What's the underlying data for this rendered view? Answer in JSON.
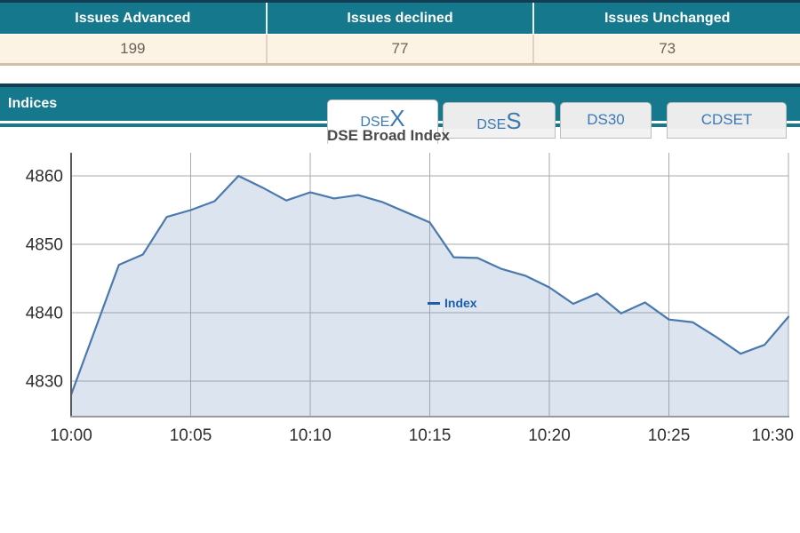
{
  "summary_table": {
    "headers": [
      "Issues Advanced",
      "Issues declined",
      "Issues Unchanged"
    ],
    "values": [
      "199",
      "77",
      "73"
    ]
  },
  "indices_panel": {
    "title": "Indices",
    "tabs": [
      {
        "prefix": "DSE",
        "suffix": "X",
        "active": true
      },
      {
        "prefix": "DSE",
        "suffix": "S",
        "active": false
      },
      {
        "label": "DS30",
        "active": false
      },
      {
        "label": "CDSET",
        "active": false
      }
    ]
  },
  "chart_data": {
    "type": "area",
    "title": "DSE Broad Index",
    "legend": [
      {
        "name": "Index",
        "color": "#1c5fa8"
      }
    ],
    "legend_position": "top-center",
    "grid": true,
    "times": [
      "10:00",
      "10:01",
      "10:02",
      "10:03",
      "10:04",
      "10:05",
      "10:06",
      "10:07",
      "10:08",
      "10:09",
      "10:10",
      "10:11",
      "10:12",
      "10:13",
      "10:14",
      "10:15",
      "10:16",
      "10:17",
      "10:18",
      "10:19",
      "10:20",
      "10:21",
      "10:22",
      "10:23",
      "10:24",
      "10:25",
      "10:26",
      "10:27",
      "10:28",
      "10:29",
      "10:30"
    ],
    "values": [
      4828.0,
      4837.5,
      4847.0,
      4848.5,
      4854.0,
      4855.0,
      4856.3,
      4860.0,
      4858.3,
      4856.4,
      4857.6,
      4856.7,
      4857.2,
      4856.2,
      4854.7,
      4853.2,
      4848.1,
      4848.0,
      4846.4,
      4845.4,
      4843.7,
      4841.3,
      4842.8,
      4839.9,
      4841.5,
      4839.0,
      4838.6,
      4836.4,
      4834.0,
      4835.3,
      4839.4
    ],
    "x_tick_labels": [
      "10:00",
      "10:05",
      "10:10",
      "10:15",
      "10:20",
      "10:25",
      "10:30"
    ],
    "y_ticks": [
      4860,
      4850,
      4840,
      4830
    ],
    "ylim": [
      4824.5,
      4863.5
    ],
    "xlabel": "",
    "ylabel": "",
    "line_color": "#4a79ad",
    "fill_color": "rgba(127,157,200,0.27)",
    "grid_color": "#a9a9a9"
  },
  "colors": {
    "teal": "#16788c",
    "teal_dark": "#123d52",
    "cream": "#fdf3e4",
    "tab_blue": "#3b79b5",
    "legend_blue": "#1c5fa8"
  }
}
